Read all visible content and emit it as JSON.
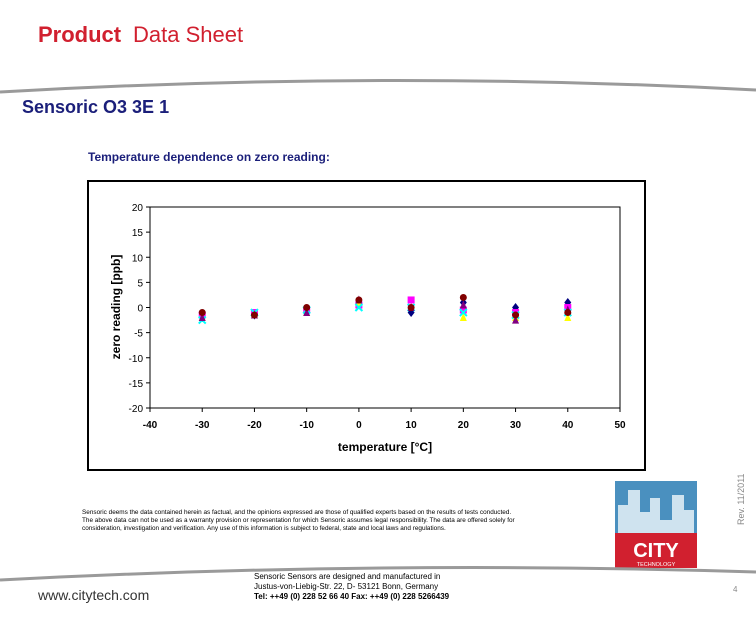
{
  "header": {
    "brand": "Product",
    "title": "Data Sheet"
  },
  "product": "Sensoric O3 3E 1",
  "chart_caption": "Temperature dependence on zero reading:",
  "chart_data": {
    "type": "scatter",
    "x_label": "temperature [°C]",
    "y_label": "zero reading [ppb]",
    "x": [
      -30,
      -20,
      -10,
      0,
      10,
      20,
      30,
      40
    ],
    "series": [
      {
        "color": "#000080",
        "marker": "diamond",
        "values": [
          -2,
          -1.5,
          -0.5,
          1,
          -1,
          1,
          0,
          1
        ]
      },
      {
        "color": "#ff00ff",
        "marker": "square",
        "values": [
          -1.5,
          -1,
          -0.5,
          0.5,
          1.5,
          -0.5,
          -1,
          0
        ]
      },
      {
        "color": "#ffff00",
        "marker": "triangle",
        "values": [
          -2,
          -1.5,
          -1,
          1,
          0,
          -2,
          -2,
          -2
        ]
      },
      {
        "color": "#00ffff",
        "marker": "x",
        "values": [
          -2.5,
          -1,
          -0.5,
          0,
          0,
          -1,
          -1.5,
          -1
        ]
      },
      {
        "color": "#800080",
        "marker": "triangle",
        "values": [
          -2,
          -1.5,
          -1,
          1.5,
          0,
          0.5,
          -2.5,
          -0.5
        ]
      },
      {
        "color": "#800000",
        "marker": "circle",
        "values": [
          -1,
          -1.5,
          0,
          1.5,
          0,
          2,
          -1.5,
          -1
        ]
      }
    ],
    "xlim": [
      -40,
      50
    ],
    "xticks": [
      -40,
      -30,
      -20,
      -10,
      0,
      10,
      20,
      30,
      40,
      50
    ],
    "ylim": [
      -20,
      20
    ],
    "yticks": [
      -20,
      -15,
      -10,
      -5,
      0,
      5,
      10,
      15,
      20
    ],
    "grid": false
  },
  "disclaimer": [
    "Sensoric deems the data contained herein as factual, and the opinions expressed are those of qualified experts based on the results of tests conducted.",
    "The above data can not be used as a warranty provision or representation for which Sensoric assumes legal responsibility. The data are offered solely for",
    "consideration, investigation and verification. Any use of this information is subject to federal, state and local laws and regulations."
  ],
  "logo": {
    "name": "CITY",
    "sub": "TECHNOLOGY"
  },
  "revision": "Rev. 11/2011",
  "footer": {
    "url": "www.citytech.com",
    "lines": [
      "Sensoric Sensors are designed and manufactured in",
      "Justus-von-Liebig-Str. 22, D- 53121 Bonn, Germany",
      "Tel: ++49 (0) 228 52 66 40   Fax: ++49 (0) 228 5266439"
    ],
    "page": "4"
  }
}
